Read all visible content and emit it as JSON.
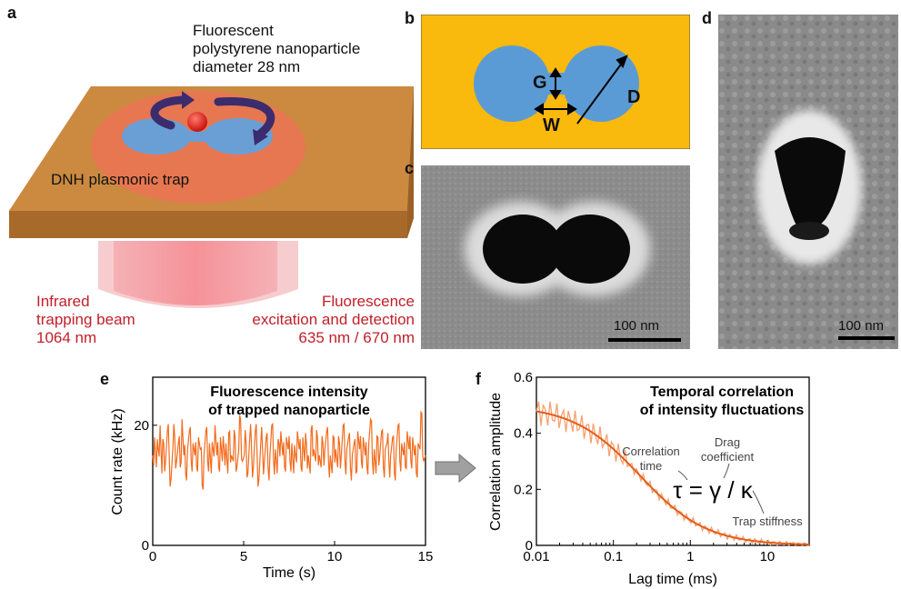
{
  "panels": {
    "a": "a",
    "b": "b",
    "c": "c",
    "d": "d",
    "e": "e",
    "f": "f"
  },
  "panel_a": {
    "particle_label_lines": [
      "Fluorescent",
      "polystyrene nanoparticle",
      "diameter 28 nm"
    ],
    "trap_label": "DNH plasmonic trap",
    "ir_label_lines": [
      "Infrared",
      "trapping beam",
      "1064 nm"
    ],
    "fl_label_lines": [
      "Fluorescence",
      "excitation and detection",
      "635 nm / 670 nm"
    ]
  },
  "panel_b": {
    "G": "G",
    "W": "W",
    "D": "D"
  },
  "panel_c": {
    "scalebar": "100 nm"
  },
  "panel_d": {
    "scalebar": "100 nm"
  },
  "colors": {
    "gold": "#f2b90f",
    "aperture": "#5b9bd5",
    "slab": "#c8853a",
    "orange": "#f26c1d",
    "darkred": "#c0202a",
    "beam": "#f58f95"
  },
  "chart_data": [
    {
      "type": "line",
      "title_lines": [
        "Fluorescence intensity",
        "of trapped nanoparticle"
      ],
      "xlabel": "Time (s)",
      "ylabel": "Count rate (kHz)",
      "xlim": [
        0,
        15
      ],
      "ylim": [
        0,
        28
      ],
      "xticks": [
        0,
        5,
        10,
        15
      ],
      "yticks": [
        0,
        20
      ],
      "series": [
        {
          "values_description": "noisy fluorescence trace",
          "mean": 15.5,
          "spread": 3
        }
      ],
      "sample_values": [
        15,
        18,
        13,
        16,
        20,
        12,
        17,
        14,
        19,
        15,
        11,
        16,
        18,
        14,
        17,
        13,
        21,
        15,
        12,
        16,
        19,
        14,
        17,
        15,
        13,
        18,
        16,
        10,
        15,
        19,
        14,
        17,
        12,
        16,
        20,
        15,
        13,
        18,
        14,
        16,
        17,
        12,
        19,
        15,
        14,
        18,
        13,
        16,
        21,
        14,
        15,
        17,
        12,
        18,
        16,
        13,
        19,
        15,
        11,
        17,
        16,
        14,
        18,
        13,
        15,
        20,
        14,
        16,
        12,
        17,
        19,
        15,
        13,
        18,
        16,
        14,
        17,
        12,
        15,
        19,
        16,
        13,
        18,
        14,
        17,
        15,
        12,
        20,
        16,
        14,
        18,
        15,
        13,
        17,
        16,
        19,
        14,
        15,
        12,
        18,
        16,
        13,
        17,
        15,
        20,
        14,
        16,
        18,
        13,
        15,
        17,
        12,
        19,
        16,
        14,
        18,
        15,
        13,
        17,
        21,
        14,
        16,
        12,
        18,
        15,
        19,
        13,
        16,
        17,
        14,
        15,
        18,
        12,
        16,
        20,
        14,
        17,
        15,
        13,
        19,
        16,
        14,
        18,
        15,
        12,
        17,
        16,
        22,
        14,
        15
      ]
    },
    {
      "type": "line",
      "title_lines": [
        "Temporal correlation",
        "of intensity fluctuations"
      ],
      "xlabel": "Lag time (ms)",
      "ylabel": "Correlation amplitude",
      "xscale": "log",
      "xlim": [
        0.01,
        35
      ],
      "ylim": [
        0,
        0.6
      ],
      "xticks": [
        0.01,
        0.1,
        1,
        10
      ],
      "xtick_labels": [
        "0.01",
        "0.1",
        "1",
        "10"
      ],
      "yticks": [
        0,
        0.2,
        0.4,
        0.6
      ],
      "ytick_labels": [
        "0",
        "0.2",
        "0.4",
        "0.6"
      ],
      "fit": {
        "amplitude": 0.5,
        "tau_ms": 0.22
      },
      "annotations": {
        "corr_time_lines": [
          "Correlation",
          "time"
        ],
        "drag_lines": [
          "Drag",
          "coefficient"
        ],
        "stiffness": "Trap stiffness",
        "equation": "τ = γ / κ"
      }
    }
  ]
}
